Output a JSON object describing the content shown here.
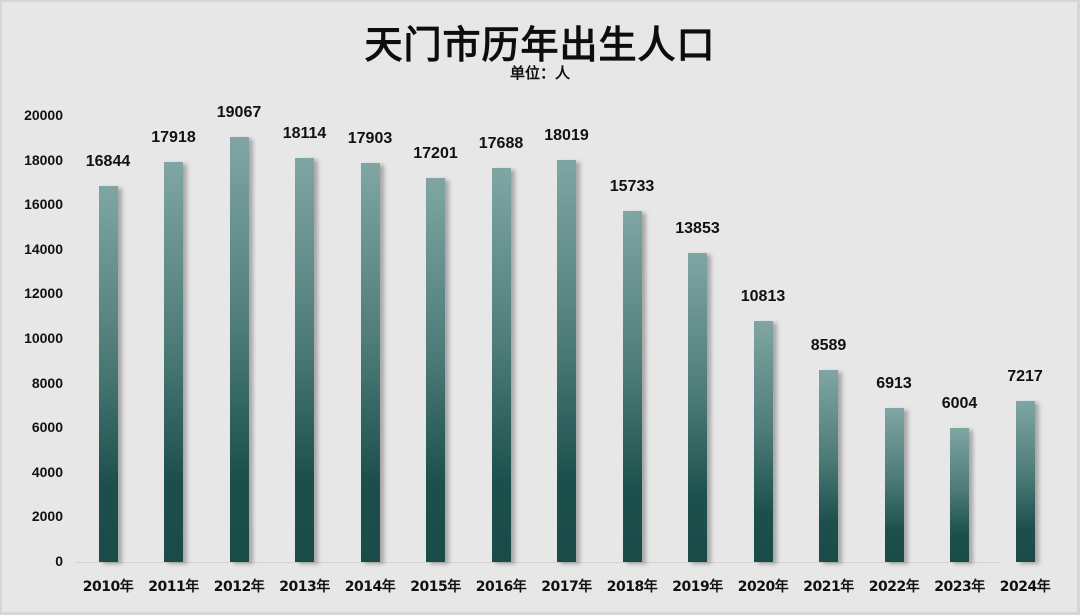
{
  "chart_data": {
    "type": "bar",
    "title": "天门市历年出生人口",
    "subtitle": "单位：人",
    "xlabel": "",
    "ylabel": "",
    "categories": [
      "2010年",
      "2011年",
      "2012年",
      "2013年",
      "2014年",
      "2015年",
      "2016年",
      "2017年",
      "2018年",
      "2019年",
      "2020年",
      "2021年",
      "2022年",
      "2023年",
      "2024年"
    ],
    "values": [
      16844,
      17918,
      19067,
      18114,
      17903,
      17201,
      17688,
      18019,
      15733,
      13853,
      10813,
      8589,
      6913,
      6004,
      7217
    ],
    "ylim": [
      0,
      20000
    ],
    "yticks": [
      "0",
      "2000",
      "4000",
      "6000",
      "8000",
      "10000",
      "12000",
      "14000",
      "16000",
      "18000",
      "20000"
    ],
    "grid": false,
    "legend": "none",
    "data_labels": true,
    "colors": {
      "bar_top": "#7fa6a3",
      "bar_bottom": "#1b4b48",
      "background": "#e7e7e7"
    }
  }
}
